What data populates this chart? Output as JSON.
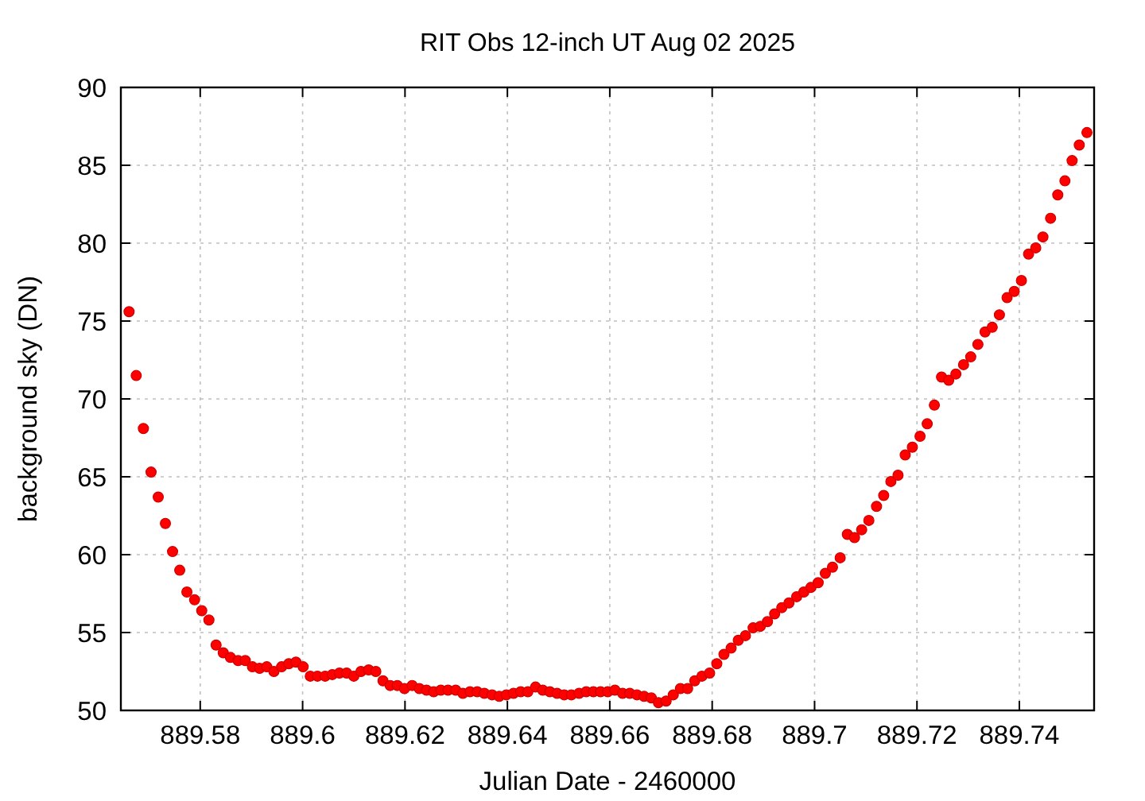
{
  "chart_data": {
    "type": "scatter",
    "title": "RIT Obs 12-inch UT Aug 02 2025",
    "xlabel": "Julian Date - 2460000",
    "ylabel": "background sky (DN)",
    "xlim": [
      889.5645,
      889.7546
    ],
    "ylim": [
      50,
      90
    ],
    "xticks": [
      {
        "value": 889.58,
        "label": "889.58"
      },
      {
        "value": 889.6,
        "label": "889.6"
      },
      {
        "value": 889.62,
        "label": "889.62"
      },
      {
        "value": 889.64,
        "label": "889.64"
      },
      {
        "value": 889.66,
        "label": "889.66"
      },
      {
        "value": 889.68,
        "label": "889.68"
      },
      {
        "value": 889.7,
        "label": "889.7"
      },
      {
        "value": 889.72,
        "label": "889.72"
      },
      {
        "value": 889.74,
        "label": "889.74"
      }
    ],
    "yticks": [
      50,
      55,
      60,
      65,
      70,
      75,
      80,
      85,
      90
    ],
    "grid": true,
    "marker": "circle",
    "x": [
      889.5661,
      889.5675,
      889.5689,
      889.5704,
      889.5718,
      889.5732,
      889.5746,
      889.576,
      889.5774,
      889.5789,
      889.5803,
      889.5817,
      889.5831,
      889.5845,
      889.5859,
      889.5874,
      889.5888,
      889.5902,
      889.5916,
      889.593,
      889.5944,
      889.5959,
      889.5973,
      889.5987,
      889.6001,
      889.6015,
      889.6029,
      889.6044,
      889.6058,
      889.6072,
      889.6086,
      889.61,
      889.6114,
      889.6129,
      889.6143,
      889.6157,
      889.6171,
      889.6185,
      889.6199,
      889.6214,
      889.6228,
      889.6242,
      889.6256,
      889.627,
      889.6284,
      889.6299,
      889.6313,
      889.6327,
      889.6341,
      889.6355,
      889.637,
      889.6384,
      889.6398,
      889.6412,
      889.6426,
      889.644,
      889.6455,
      889.6469,
      889.6483,
      889.6497,
      889.6511,
      889.6525,
      889.654,
      889.6554,
      889.6568,
      889.6582,
      889.6596,
      889.661,
      889.6625,
      889.6639,
      889.6653,
      889.6667,
      889.6681,
      889.6695,
      889.671,
      889.6724,
      889.6738,
      889.6752,
      889.6766,
      889.678,
      889.6795,
      889.6809,
      889.6823,
      889.6837,
      889.6851,
      889.6865,
      889.688,
      889.6894,
      889.6908,
      889.6922,
      889.6936,
      889.695,
      889.6965,
      889.6979,
      889.6993,
      889.7007,
      889.7021,
      889.7035,
      889.705,
      889.7064,
      889.7078,
      889.7092,
      889.7106,
      889.7121,
      889.7135,
      889.7149,
      889.7163,
      889.7177,
      889.7191,
      889.7206,
      889.722,
      889.7234,
      889.7248,
      889.7262,
      889.7276,
      889.7291,
      889.7305,
      889.7319,
      889.7333,
      889.7347,
      889.7361,
      889.7376,
      889.739,
      889.7404,
      889.7418,
      889.7432,
      889.7446,
      889.7461,
      889.7475,
      889.7489,
      889.7503,
      889.7517,
      889.7532
    ],
    "series": [
      {
        "color": "#ff0000",
        "values": [
          75.6,
          71.5,
          68.1,
          65.3,
          63.7,
          62.0,
          60.2,
          59.0,
          57.6,
          57.1,
          56.4,
          55.8,
          54.2,
          53.7,
          53.4,
          53.2,
          53.2,
          52.8,
          52.7,
          52.8,
          52.5,
          52.8,
          53.0,
          53.1,
          52.8,
          52.2,
          52.2,
          52.2,
          52.3,
          52.4,
          52.4,
          52.2,
          52.5,
          52.6,
          52.5,
          51.9,
          51.6,
          51.6,
          51.4,
          51.6,
          51.4,
          51.3,
          51.2,
          51.3,
          51.3,
          51.3,
          51.1,
          51.2,
          51.2,
          51.1,
          51.0,
          50.9,
          51.0,
          51.1,
          51.2,
          51.2,
          51.5,
          51.3,
          51.2,
          51.1,
          51.0,
          51.0,
          51.1,
          51.2,
          51.2,
          51.2,
          51.2,
          51.3,
          51.1,
          51.1,
          51.0,
          50.9,
          50.8,
          50.5,
          50.6,
          51.0,
          51.4,
          51.4,
          51.9,
          52.2,
          52.4,
          53.0,
          53.6,
          54.0,
          54.5,
          54.8,
          55.3,
          55.4,
          55.7,
          56.2,
          56.6,
          56.9,
          57.3,
          57.6,
          57.9,
          58.2,
          58.8,
          59.2,
          59.8,
          61.3,
          61.1,
          61.6,
          62.2,
          63.1,
          63.8,
          64.7,
          65.1,
          66.4,
          66.9,
          67.6,
          68.4,
          69.6,
          71.4,
          71.2,
          71.6,
          72.2,
          72.7,
          73.5,
          74.3,
          74.6,
          75.4,
          76.5,
          76.9,
          77.6,
          79.3,
          79.7,
          80.4,
          81.6,
          83.1,
          84.0,
          85.3,
          86.3,
          87.1
        ]
      }
    ]
  }
}
